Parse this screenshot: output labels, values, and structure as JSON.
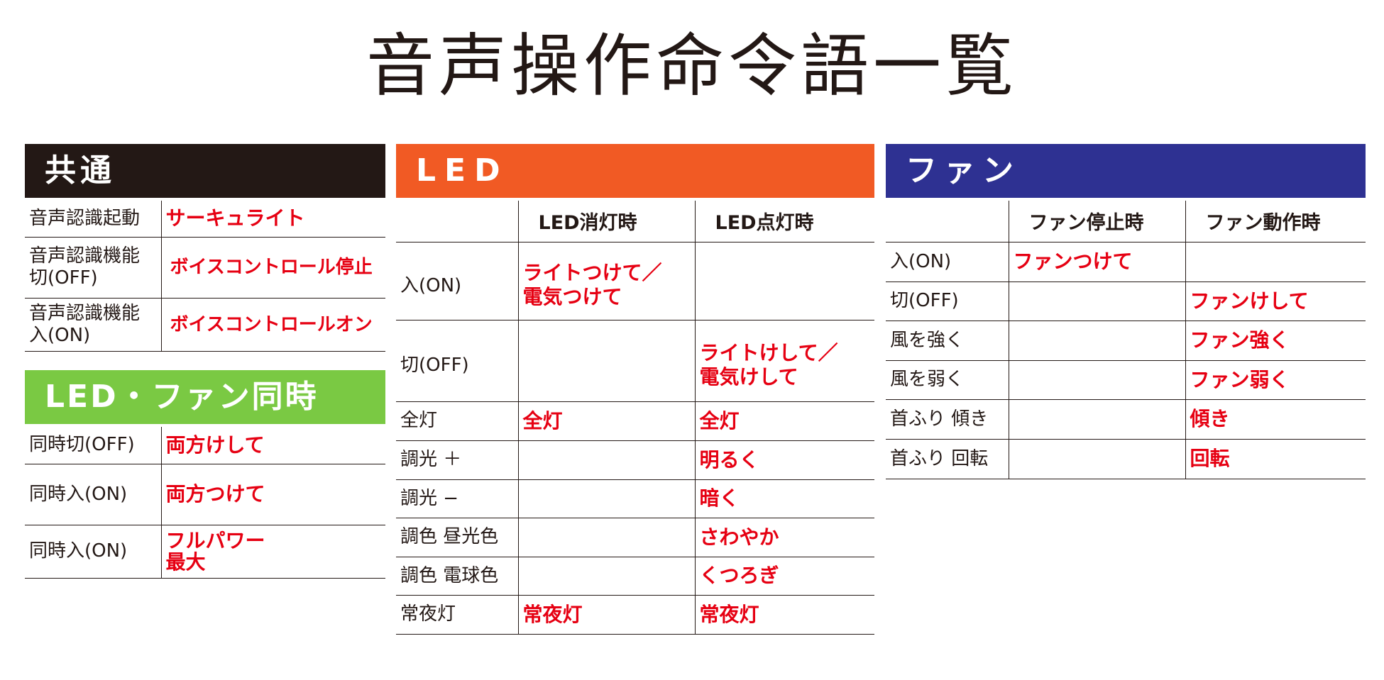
{
  "title": "音声操作命令語一覧",
  "colors": {
    "common_header": "#231815",
    "led_header": "#f15a24",
    "fan_header": "#2e3192",
    "both_header": "#7ac943",
    "command_text": "#e60012"
  },
  "common": {
    "header": "共通",
    "rows": [
      {
        "label": "音声認識起動",
        "command": "サーキュライト"
      },
      {
        "label": "音声認識機能\n切(OFF)",
        "command": "ボイスコントロール停止"
      },
      {
        "label": "音声認識機能\n入(ON)",
        "command": "ボイスコントロールオン"
      }
    ]
  },
  "both": {
    "header": "LED・ファン同時",
    "rows": [
      {
        "label": "同時切(OFF)",
        "command": "両方けして"
      },
      {
        "label": "同時入(ON)",
        "command": "両方つけて"
      },
      {
        "label": "同時入(ON)",
        "command": "フルパワー\n最大"
      }
    ]
  },
  "led": {
    "header": "LED",
    "col1": "LED消灯時",
    "col2": "LED点灯時",
    "rows": [
      {
        "label": "入(ON)",
        "off": "ライトつけて／\n電気つけて",
        "on": ""
      },
      {
        "label": "切(OFF)",
        "off": "",
        "on": "ライトけして／\n電気けして"
      },
      {
        "label": "全灯",
        "off": "全灯",
        "on": "全灯"
      },
      {
        "label": "調光 ＋",
        "off": "",
        "on": "明るく"
      },
      {
        "label": "調光 −",
        "off": "",
        "on": "暗く"
      },
      {
        "label": "調色 昼光色",
        "off": "",
        "on": "さわやか"
      },
      {
        "label": "調色 電球色",
        "off": "",
        "on": "くつろぎ"
      },
      {
        "label": "常夜灯",
        "off": "常夜灯",
        "on": "常夜灯"
      }
    ]
  },
  "fan": {
    "header": "ファン",
    "col1": "ファン停止時",
    "col2": "ファン動作時",
    "rows": [
      {
        "label": "入(ON)",
        "stopped": "ファンつけて",
        "running": ""
      },
      {
        "label": "切(OFF)",
        "stopped": "",
        "running": "ファンけして"
      },
      {
        "label": "風を強く",
        "stopped": "",
        "running": "ファン強く"
      },
      {
        "label": "風を弱く",
        "stopped": "",
        "running": "ファン弱く"
      },
      {
        "label": "首ふり 傾き",
        "stopped": "",
        "running": "傾き"
      },
      {
        "label": "首ふり 回転",
        "stopped": "",
        "running": "回転"
      }
    ]
  }
}
